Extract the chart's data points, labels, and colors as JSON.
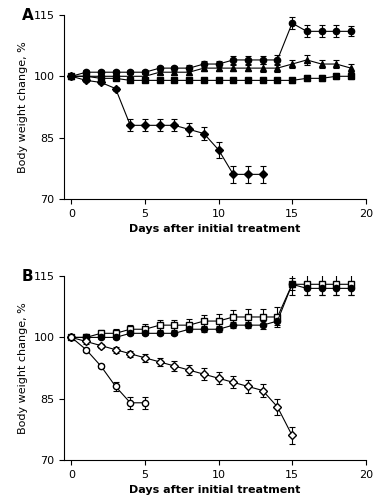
{
  "panel_A": {
    "circle_control": {
      "x": [
        0,
        1,
        2,
        3,
        4,
        5,
        6,
        7,
        8,
        9,
        10,
        11,
        12,
        13,
        14,
        15,
        16,
        17,
        18,
        19
      ],
      "y": [
        100,
        101,
        101,
        101,
        101,
        101,
        102,
        102,
        102,
        103,
        103,
        104,
        104,
        104,
        104,
        113,
        111,
        111,
        111,
        111
      ],
      "yerr": [
        0,
        0.5,
        0.5,
        0.5,
        0.5,
        0.5,
        0.6,
        0.6,
        0.7,
        0.7,
        0.8,
        0.9,
        0.9,
        1.0,
        1.2,
        1.5,
        1.5,
        1.5,
        1.5,
        1.2
      ],
      "marker": "o",
      "fillstyle": "full"
    },
    "triangle_1mg": {
      "x": [
        0,
        1,
        2,
        3,
        4,
        5,
        6,
        7,
        8,
        9,
        10,
        11,
        12,
        13,
        14,
        15,
        16,
        17,
        18,
        19
      ],
      "y": [
        100,
        100,
        100,
        100,
        100,
        100,
        101,
        101,
        101,
        102,
        102,
        102,
        102,
        102,
        102,
        103,
        104,
        103,
        103,
        102
      ],
      "yerr": [
        0,
        0.5,
        0.5,
        0.5,
        0.5,
        0.5,
        0.5,
        0.7,
        0.7,
        0.7,
        0.8,
        0.8,
        0.8,
        0.9,
        1.0,
        1.0,
        1.2,
        1.0,
        1.0,
        0.9
      ],
      "marker": "^",
      "fillstyle": "full"
    },
    "square_3mg": {
      "x": [
        0,
        1,
        2,
        3,
        4,
        5,
        6,
        7,
        8,
        9,
        10,
        11,
        12,
        13,
        14,
        15,
        16,
        17,
        18,
        19
      ],
      "y": [
        100,
        100,
        99.5,
        99.5,
        99,
        99,
        99,
        99,
        99,
        99,
        99,
        99,
        99,
        99,
        99,
        99,
        99.5,
        99.5,
        100,
        100
      ],
      "yerr": [
        0,
        0.5,
        0.5,
        0.5,
        0.5,
        0.5,
        0.5,
        0.5,
        0.5,
        0.5,
        0.5,
        0.5,
        0.5,
        0.5,
        0.5,
        0.7,
        0.7,
        0.7,
        0.7,
        0.7
      ],
      "marker": "s",
      "fillstyle": "full"
    },
    "diamond_5mg": {
      "x": [
        0,
        1,
        2,
        3,
        4,
        5,
        6,
        7,
        8,
        9,
        10,
        11,
        12,
        13
      ],
      "y": [
        100,
        99,
        98.5,
        97,
        88,
        88,
        88,
        88,
        87,
        86,
        82,
        76,
        76,
        76
      ],
      "yerr": [
        0,
        0.5,
        0.5,
        0.5,
        1.5,
        1.5,
        1.5,
        1.5,
        1.5,
        1.5,
        2.0,
        2.0,
        2.0,
        2.0
      ],
      "marker": "D",
      "fillstyle": "full"
    }
  },
  "panel_B": {
    "square_3mg": {
      "x": [
        0,
        1,
        2,
        3,
        4,
        5,
        6,
        7,
        8,
        9,
        10,
        11,
        12,
        13,
        14,
        15,
        16,
        17,
        18,
        19
      ],
      "y": [
        100,
        100,
        101,
        101,
        102,
        102,
        103,
        103,
        103,
        104,
        104,
        105,
        105,
        105,
        105,
        113,
        113,
        113,
        113,
        113
      ],
      "yerr": [
        0,
        0.8,
        0.8,
        1.0,
        1.0,
        1.2,
        1.2,
        1.2,
        1.5,
        1.5,
        1.8,
        1.8,
        2.0,
        2.0,
        2.5,
        2.5,
        2.5,
        2.5,
        2.5,
        2.5
      ],
      "marker": "s",
      "fillstyle": "none"
    },
    "circle_control": {
      "x": [
        0,
        1,
        2,
        3,
        4,
        5,
        6,
        7,
        8,
        9,
        10,
        11,
        12,
        13,
        14,
        15,
        16,
        17,
        18,
        19
      ],
      "y": [
        100,
        100,
        100,
        100,
        101,
        101,
        101,
        101,
        102,
        102,
        102,
        103,
        103,
        103,
        104,
        113,
        112,
        112,
        112,
        112
      ],
      "yerr": [
        0,
        0.5,
        0.5,
        0.5,
        0.5,
        0.5,
        0.5,
        0.5,
        0.7,
        0.7,
        0.7,
        0.8,
        0.8,
        0.9,
        1.0,
        1.5,
        1.5,
        1.5,
        1.5,
        1.5
      ],
      "marker": "o",
      "fillstyle": "full"
    },
    "diamond_5mg": {
      "x": [
        0,
        1,
        2,
        3,
        4,
        5,
        6,
        7,
        8,
        9,
        10,
        11,
        12,
        13,
        14,
        15
      ],
      "y": [
        100,
        99,
        98,
        97,
        96,
        95,
        94,
        93,
        92,
        91,
        90,
        89,
        88,
        87,
        83,
        76
      ],
      "yerr": [
        0,
        0.5,
        0.5,
        0.7,
        0.7,
        1.0,
        1.0,
        1.2,
        1.2,
        1.5,
        1.5,
        1.5,
        1.5,
        1.5,
        2.0,
        2.0
      ],
      "marker": "D",
      "fillstyle": "none"
    },
    "circle_10mg": {
      "x": [
        0,
        1,
        2,
        3,
        4,
        5
      ],
      "y": [
        100,
        97,
        93,
        88,
        84,
        84
      ],
      "yerr": [
        0,
        0.5,
        0.5,
        1.0,
        1.5,
        1.5
      ],
      "marker": "o",
      "fillstyle": "none"
    }
  },
  "ylim": [
    70,
    115
  ],
  "xlim": [
    -0.5,
    20
  ],
  "yticks": [
    70,
    85,
    100,
    115
  ],
  "xticks": [
    0,
    5,
    10,
    15,
    20
  ],
  "xlabel": "Days after initial treatment",
  "ylabel": "Body weight change, %",
  "label_A": "A",
  "label_B": "B"
}
